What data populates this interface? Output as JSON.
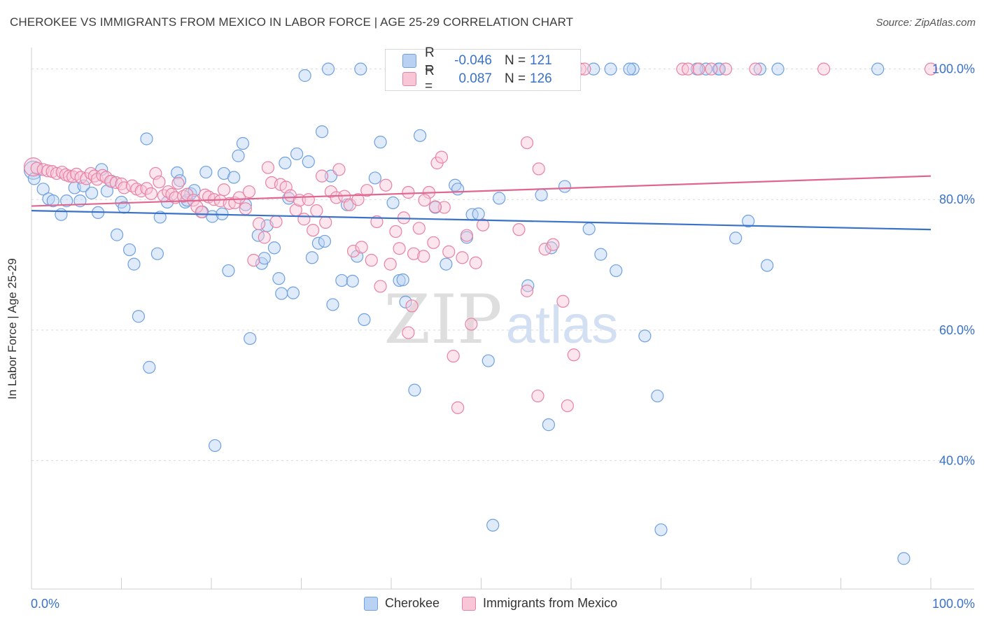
{
  "title": "CHEROKEE VS IMMIGRANTS FROM MEXICO IN LABOR FORCE | AGE 25-29 CORRELATION CHART",
  "source": "Source: ZipAtlas.com",
  "watermark": {
    "zip": "ZIP",
    "atlas": "atlas"
  },
  "legend": {
    "r_label": "R =",
    "n_label": "N =",
    "series": [
      {
        "name": "Cherokee",
        "r": "-0.046",
        "n": "121",
        "color": "#6fa0e0",
        "fill": "#b9d2f4"
      },
      {
        "name": "Immigrants from Mexico",
        "r": "0.087",
        "n": "126",
        "color": "#e882a3",
        "fill": "#f8c6d6"
      }
    ]
  },
  "chart_data": {
    "type": "scatter",
    "title": "CHEROKEE VS IMMIGRANTS FROM MEXICO IN LABOR FORCE | AGE 25-29 CORRELATION CHART",
    "xlabel": "",
    "ylabel": "In Labor Force | Age 25-29",
    "xlim": [
      0,
      100
    ],
    "ylim": [
      20,
      102
    ],
    "x_tick_labels": [
      "0.0%",
      "100.0%"
    ],
    "y_ticks": [
      40,
      60,
      80,
      100
    ],
    "y_tick_labels": [
      "40.0%",
      "60.0%",
      "80.0%",
      "100.0%"
    ],
    "grid": true,
    "legend_position": "top-center",
    "series": [
      {
        "name": "Cherokee",
        "color": "#3a72c8",
        "trend": {
          "x": [
            0,
            100
          ],
          "y": [
            78.3,
            75.4
          ]
        },
        "points": [
          [
            0.2,
            84.5
          ],
          [
            0.3,
            83.2
          ],
          [
            1.3,
            81.6
          ],
          [
            1.9,
            80.1
          ],
          [
            2.4,
            79.8
          ],
          [
            3.3,
            77.7
          ],
          [
            3.9,
            79.8
          ],
          [
            4.8,
            81.8
          ],
          [
            5.4,
            79.8
          ],
          [
            5.8,
            82.1
          ],
          [
            6.7,
            81.0
          ],
          [
            7.4,
            78.0
          ],
          [
            7.8,
            84.6
          ],
          [
            8.4,
            81.3
          ],
          [
            8.9,
            82.8
          ],
          [
            9.5,
            74.6
          ],
          [
            10.0,
            79.6
          ],
          [
            10.3,
            78.8
          ],
          [
            10.9,
            72.3
          ],
          [
            11.4,
            70.1
          ],
          [
            11.9,
            62.1
          ],
          [
            12.8,
            89.3
          ],
          [
            13.1,
            54.3
          ],
          [
            14.0,
            71.7
          ],
          [
            14.3,
            77.3
          ],
          [
            15.1,
            79.6
          ],
          [
            16.2,
            84.1
          ],
          [
            16.5,
            82.9
          ],
          [
            17.1,
            79.6
          ],
          [
            17.3,
            79.9
          ],
          [
            17.7,
            80.9
          ],
          [
            18.1,
            81.4
          ],
          [
            19.0,
            78.1
          ],
          [
            19.4,
            84.2
          ],
          [
            20.1,
            77.4
          ],
          [
            20.4,
            42.3
          ],
          [
            21.2,
            77.8
          ],
          [
            21.4,
            84.0
          ],
          [
            21.9,
            69.1
          ],
          [
            22.5,
            83.4
          ],
          [
            23.0,
            86.7
          ],
          [
            23.5,
            88.6
          ],
          [
            23.8,
            79.2
          ],
          [
            24.3,
            58.7
          ],
          [
            25.2,
            74.5
          ],
          [
            25.6,
            70.2
          ],
          [
            25.9,
            71.0
          ],
          [
            26.2,
            76.0
          ],
          [
            27.0,
            72.6
          ],
          [
            27.5,
            67.9
          ],
          [
            27.8,
            65.6
          ],
          [
            28.2,
            85.6
          ],
          [
            28.6,
            80.2
          ],
          [
            29.1,
            65.7
          ],
          [
            29.5,
            87.0
          ],
          [
            30.4,
            99.0
          ],
          [
            30.8,
            85.8
          ],
          [
            31.2,
            71.1
          ],
          [
            31.9,
            73.3
          ],
          [
            32.3,
            90.4
          ],
          [
            32.6,
            73.6
          ],
          [
            33.3,
            83.6
          ],
          [
            33.5,
            63.9
          ],
          [
            34.5,
            67.6
          ],
          [
            35.1,
            79.2
          ],
          [
            35.7,
            67.5
          ],
          [
            36.2,
            71.3
          ],
          [
            36.6,
            100.0
          ],
          [
            37.0,
            61.6
          ],
          [
            38.2,
            83.3
          ],
          [
            38.8,
            88.8
          ],
          [
            40.2,
            79.5
          ],
          [
            40.9,
            67.6
          ],
          [
            41.3,
            67.7
          ],
          [
            41.6,
            64.3
          ],
          [
            42.6,
            50.8
          ],
          [
            43.2,
            89.8
          ],
          [
            44.9,
            78.8
          ],
          [
            46.1,
            70.1
          ],
          [
            47.1,
            82.2
          ],
          [
            47.4,
            81.6
          ],
          [
            48.4,
            74.2
          ],
          [
            49.0,
            77.7
          ],
          [
            49.7,
            77.8
          ],
          [
            50.8,
            55.3
          ],
          [
            51.3,
            30.1
          ],
          [
            52.0,
            80.2
          ],
          [
            53.0,
            100.0
          ],
          [
            54.6,
            100.0
          ],
          [
            55.2,
            66.8
          ],
          [
            56.7,
            80.7
          ],
          [
            57.5,
            45.5
          ],
          [
            57.8,
            72.6
          ],
          [
            58.2,
            100.0
          ],
          [
            59.3,
            82.0
          ],
          [
            60.0,
            100.0
          ],
          [
            62.0,
            75.5
          ],
          [
            63.3,
            71.6
          ],
          [
            64.4,
            100.0
          ],
          [
            65.0,
            69.1
          ],
          [
            66.9,
            100.0
          ],
          [
            68.2,
            59.1
          ],
          [
            69.6,
            49.9
          ],
          [
            70.0,
            29.4
          ],
          [
            75.0,
            100.0
          ],
          [
            76.4,
            100.0
          ],
          [
            76.5,
            100.0
          ],
          [
            78.3,
            74.1
          ],
          [
            79.7,
            76.7
          ],
          [
            81.0,
            100.0
          ],
          [
            81.8,
            69.9
          ],
          [
            94.1,
            100.0
          ],
          [
            97.0,
            25.0
          ],
          [
            33.0,
            100.0
          ],
          [
            48.0,
            100.0
          ],
          [
            55.5,
            100.0
          ],
          [
            60.5,
            100.0
          ],
          [
            66.5,
            100.0
          ],
          [
            62.5,
            100.0
          ],
          [
            83.0,
            100.0
          ],
          [
            74.0,
            100.0
          ]
        ]
      },
      {
        "name": "Immigrants from Mexico",
        "color": "#e0668f",
        "trend": {
          "x": [
            0,
            100
          ],
          "y": [
            79.0,
            83.6
          ]
        },
        "points": [
          [
            0.2,
            85.0
          ],
          [
            0.6,
            84.8
          ],
          [
            1.3,
            84.6
          ],
          [
            1.8,
            84.4
          ],
          [
            2.3,
            84.3
          ],
          [
            2.8,
            84.0
          ],
          [
            3.4,
            84.2
          ],
          [
            3.8,
            83.8
          ],
          [
            4.2,
            83.6
          ],
          [
            4.6,
            83.5
          ],
          [
            5.0,
            83.9
          ],
          [
            5.5,
            83.4
          ],
          [
            6.1,
            83.2
          ],
          [
            6.6,
            84.0
          ],
          [
            7.0,
            83.6
          ],
          [
            7.3,
            83.1
          ],
          [
            7.9,
            83.7
          ],
          [
            8.3,
            83.4
          ],
          [
            8.8,
            82.8
          ],
          [
            9.4,
            82.6
          ],
          [
            10.0,
            82.4
          ],
          [
            10.3,
            81.8
          ],
          [
            11.2,
            82.1
          ],
          [
            11.7,
            81.6
          ],
          [
            12.2,
            81.3
          ],
          [
            12.8,
            81.7
          ],
          [
            13.3,
            80.9
          ],
          [
            13.8,
            84.0
          ],
          [
            14.2,
            82.7
          ],
          [
            14.7,
            80.6
          ],
          [
            15.2,
            81.2
          ],
          [
            15.6,
            80.8
          ],
          [
            16.0,
            80.3
          ],
          [
            16.3,
            82.5
          ],
          [
            16.9,
            80.5
          ],
          [
            17.3,
            80.8
          ],
          [
            18.0,
            79.9
          ],
          [
            18.4,
            78.9
          ],
          [
            18.9,
            78.1
          ],
          [
            19.3,
            80.7
          ],
          [
            19.7,
            80.4
          ],
          [
            20.3,
            80.0
          ],
          [
            21.0,
            79.8
          ],
          [
            21.4,
            81.5
          ],
          [
            22.0,
            79.4
          ],
          [
            22.6,
            79.5
          ],
          [
            23.1,
            80.3
          ],
          [
            23.8,
            78.6
          ],
          [
            24.2,
            81.2
          ],
          [
            24.7,
            70.7
          ],
          [
            25.3,
            76.3
          ],
          [
            25.9,
            74.2
          ],
          [
            26.3,
            84.9
          ],
          [
            26.7,
            82.6
          ],
          [
            27.2,
            76.6
          ],
          [
            27.7,
            82.3
          ],
          [
            28.3,
            81.9
          ],
          [
            28.8,
            80.6
          ],
          [
            29.4,
            78.4
          ],
          [
            29.8,
            79.9
          ],
          [
            30.3,
            77.0
          ],
          [
            30.8,
            80.0
          ],
          [
            31.3,
            75.3
          ],
          [
            31.7,
            78.3
          ],
          [
            32.3,
            83.6
          ],
          [
            32.7,
            76.5
          ],
          [
            33.3,
            81.2
          ],
          [
            33.9,
            80.3
          ],
          [
            34.2,
            84.6
          ],
          [
            34.8,
            80.5
          ],
          [
            35.4,
            79.2
          ],
          [
            35.8,
            72.1
          ],
          [
            36.3,
            80.0
          ],
          [
            36.7,
            72.7
          ],
          [
            37.3,
            81.4
          ],
          [
            37.8,
            70.7
          ],
          [
            38.4,
            76.6
          ],
          [
            38.8,
            66.7
          ],
          [
            39.4,
            82.2
          ],
          [
            39.9,
            70.1
          ],
          [
            40.5,
            75.1
          ],
          [
            40.9,
            72.5
          ],
          [
            41.4,
            77.2
          ],
          [
            41.9,
            81.1
          ],
          [
            42.5,
            71.7
          ],
          [
            43.1,
            75.6
          ],
          [
            43.6,
            71.3
          ],
          [
            44.2,
            81.1
          ],
          [
            44.7,
            73.4
          ],
          [
            45.1,
            85.6
          ],
          [
            45.6,
            86.5
          ],
          [
            45.9,
            78.8
          ],
          [
            46.4,
            72.0
          ],
          [
            46.9,
            56.0
          ],
          [
            47.4,
            48.1
          ],
          [
            47.9,
            71.1
          ],
          [
            48.4,
            74.5
          ],
          [
            48.9,
            60.9
          ],
          [
            49.4,
            70.3
          ],
          [
            54.2,
            75.4
          ],
          [
            55.1,
            66.0
          ],
          [
            56.3,
            49.9
          ],
          [
            57.1,
            72.4
          ],
          [
            58.0,
            73.1
          ],
          [
            59.1,
            64.4
          ],
          [
            59.6,
            48.4
          ],
          [
            60.3,
            56.2
          ],
          [
            61.0,
            100.0
          ],
          [
            58.8,
            100.0
          ],
          [
            61.5,
            100.0
          ],
          [
            72.4,
            100.0
          ],
          [
            73.0,
            100.0
          ],
          [
            74.2,
            100.0
          ],
          [
            75.6,
            100.0
          ],
          [
            77.2,
            100.0
          ],
          [
            80.5,
            100.0
          ],
          [
            88.1,
            100.0
          ],
          [
            100.0,
            100.0
          ],
          [
            55.1,
            88.7
          ],
          [
            56.4,
            84.7
          ],
          [
            46.8,
            100.0
          ],
          [
            41.9,
            59.6
          ],
          [
            42.3,
            63.7
          ],
          [
            43.7,
            79.9
          ],
          [
            44.9,
            78.9
          ],
          [
            50.2,
            76.1
          ]
        ]
      }
    ]
  }
}
